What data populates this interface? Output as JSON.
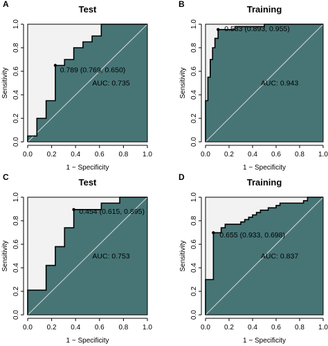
{
  "colors": {
    "auc_fill": "#477576",
    "upper_fill": "#f2f2f2",
    "diagonal": "#d8d8d8",
    "curve": "#000000"
  },
  "chart_data": [
    {
      "type": "area",
      "panel": "A",
      "title": "Test",
      "xlabel": "1 − Specificity",
      "ylabel": "Sensitivity",
      "xlim": [
        0,
        1
      ],
      "ylim": [
        0,
        1
      ],
      "xticks": [
        "0.0",
        "0.2",
        "0.4",
        "0.6",
        "0.8",
        "1.0"
      ],
      "yticks": [
        "0.0",
        "0.2",
        "0.4",
        "0.6",
        "0.8",
        "1.0"
      ],
      "grid": false,
      "roc_points": [
        [
          0,
          0
        ],
        [
          0,
          0.05
        ],
        [
          0.077,
          0.05
        ],
        [
          0.077,
          0.2
        ],
        [
          0.154,
          0.2
        ],
        [
          0.154,
          0.35
        ],
        [
          0.231,
          0.35
        ],
        [
          0.231,
          0.65
        ],
        [
          0.308,
          0.65
        ],
        [
          0.308,
          0.7
        ],
        [
          0.385,
          0.7
        ],
        [
          0.385,
          0.8
        ],
        [
          0.462,
          0.8
        ],
        [
          0.462,
          0.85
        ],
        [
          0.538,
          0.85
        ],
        [
          0.538,
          0.9
        ],
        [
          0.615,
          0.9
        ],
        [
          0.615,
          1.0
        ],
        [
          1,
          1
        ]
      ],
      "cutoff_point": [
        0.231,
        0.65
      ],
      "cutoff_label": "0.789 (0.769, 0.650)",
      "auc_label": "AUC: 0.735"
    },
    {
      "type": "area",
      "panel": "B",
      "title": "Training",
      "xlabel": "1 − Specificity",
      "ylabel": "Sensitivity",
      "xlim": [
        0,
        1
      ],
      "ylim": [
        0,
        1
      ],
      "xticks": [
        "0.0",
        "0.2",
        "0.4",
        "0.6",
        "0.8",
        "1.0"
      ],
      "yticks": [
        "0.0",
        "0.2",
        "0.4",
        "0.6",
        "0.8",
        "1.0"
      ],
      "grid": false,
      "roc_points": [
        [
          0,
          0
        ],
        [
          0,
          0.35
        ],
        [
          0.02,
          0.35
        ],
        [
          0.02,
          0.55
        ],
        [
          0.04,
          0.55
        ],
        [
          0.04,
          0.7
        ],
        [
          0.06,
          0.7
        ],
        [
          0.06,
          0.8
        ],
        [
          0.08,
          0.8
        ],
        [
          0.08,
          0.88
        ],
        [
          0.107,
          0.88
        ],
        [
          0.107,
          0.955
        ],
        [
          0.25,
          0.955
        ],
        [
          0.25,
          0.98
        ],
        [
          0.5,
          0.98
        ],
        [
          0.5,
          1.0
        ],
        [
          1,
          1
        ]
      ],
      "cutoff_point": [
        0.107,
        0.955
      ],
      "cutoff_label": "0.533 (0.893, 0.955)",
      "auc_label": "AUC: 0.943"
    },
    {
      "type": "area",
      "panel": "C",
      "title": "Test",
      "xlabel": "1 − Specificity",
      "ylabel": "Sensitivity",
      "xlim": [
        0,
        1
      ],
      "ylim": [
        0,
        1
      ],
      "xticks": [
        "0.0",
        "0.2",
        "0.4",
        "0.6",
        "0.8",
        "1.0"
      ],
      "yticks": [
        "0.0",
        "0.2",
        "0.4",
        "0.6",
        "0.8",
        "1.0"
      ],
      "grid": false,
      "roc_points": [
        [
          0,
          0
        ],
        [
          0,
          0.21
        ],
        [
          0.154,
          0.21
        ],
        [
          0.154,
          0.42
        ],
        [
          0.231,
          0.42
        ],
        [
          0.231,
          0.58
        ],
        [
          0.308,
          0.58
        ],
        [
          0.308,
          0.74
        ],
        [
          0.385,
          0.74
        ],
        [
          0.385,
          0.895
        ],
        [
          0.615,
          0.895
        ],
        [
          0.615,
          0.95
        ],
        [
          0.769,
          0.95
        ],
        [
          0.769,
          1.0
        ],
        [
          1,
          1
        ]
      ],
      "cutoff_point": [
        0.385,
        0.895
      ],
      "cutoff_label": "0.454 (0.615, 0.895)",
      "auc_label": "AUC: 0.753"
    },
    {
      "type": "area",
      "panel": "D",
      "title": "Training",
      "xlabel": "1 − Specificity",
      "ylabel": "Sensitivity",
      "xlim": [
        0,
        1
      ],
      "ylim": [
        0,
        1
      ],
      "xticks": [
        "0.0",
        "0.2",
        "0.4",
        "0.6",
        "0.8",
        "1.0"
      ],
      "yticks": [
        "0.0",
        "0.2",
        "0.4",
        "0.6",
        "0.8",
        "1.0"
      ],
      "grid": false,
      "roc_points": [
        [
          0,
          0
        ],
        [
          0,
          0.3
        ],
        [
          0.067,
          0.3
        ],
        [
          0.067,
          0.698
        ],
        [
          0.133,
          0.698
        ],
        [
          0.133,
          0.74
        ],
        [
          0.167,
          0.74
        ],
        [
          0.167,
          0.77
        ],
        [
          0.3,
          0.77
        ],
        [
          0.3,
          0.79
        ],
        [
          0.333,
          0.79
        ],
        [
          0.333,
          0.81
        ],
        [
          0.367,
          0.81
        ],
        [
          0.367,
          0.83
        ],
        [
          0.4,
          0.83
        ],
        [
          0.4,
          0.85
        ],
        [
          0.433,
          0.85
        ],
        [
          0.433,
          0.87
        ],
        [
          0.467,
          0.87
        ],
        [
          0.467,
          0.89
        ],
        [
          0.533,
          0.89
        ],
        [
          0.533,
          0.91
        ],
        [
          0.6,
          0.91
        ],
        [
          0.6,
          0.93
        ],
        [
          0.633,
          0.93
        ],
        [
          0.633,
          0.95
        ],
        [
          0.833,
          0.95
        ],
        [
          0.833,
          0.97
        ],
        [
          0.867,
          0.97
        ],
        [
          0.867,
          1.0
        ],
        [
          1,
          1
        ]
      ],
      "cutoff_point": [
        0.067,
        0.698
      ],
      "cutoff_label": "0.655 (0.933, 0.698)",
      "auc_label": "AUC: 0.837"
    }
  ]
}
